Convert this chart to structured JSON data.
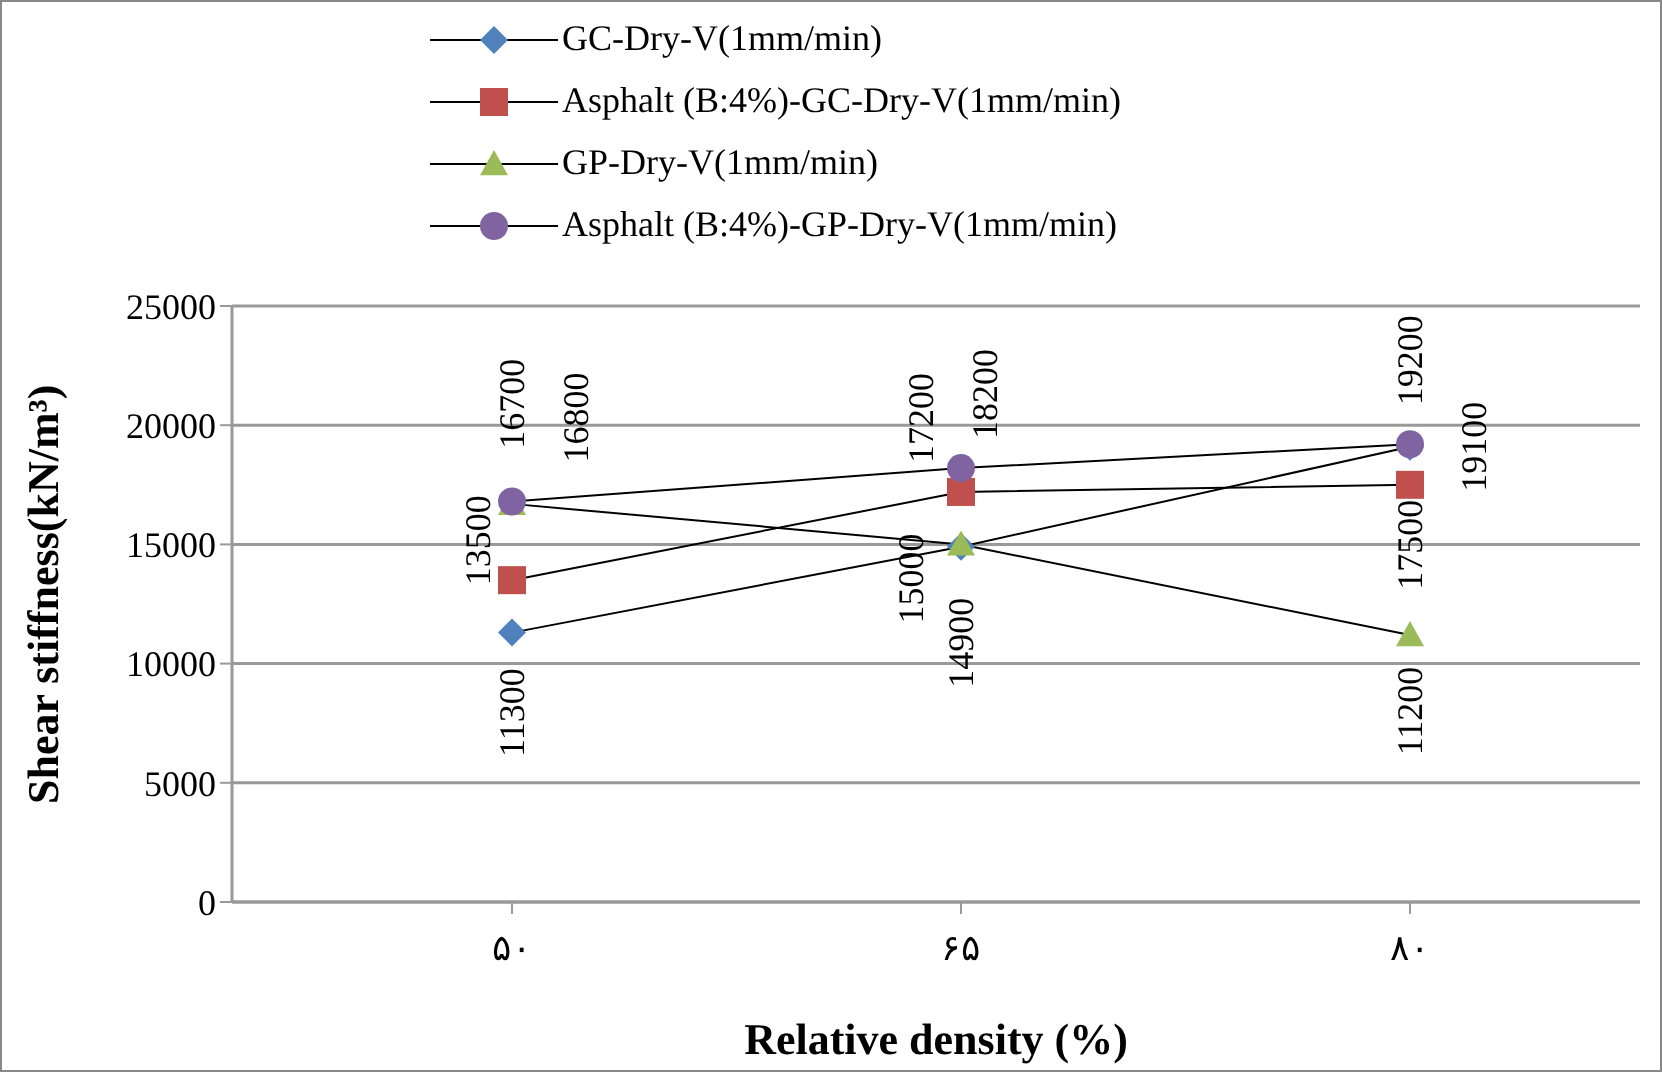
{
  "chart_data": {
    "type": "line",
    "xlabel": "Relative density (%)",
    "ylabel": "Shear stiffness(kN/m³)",
    "categories": [
      "۵۰",
      "۶۵",
      "۸۰"
    ],
    "series": [
      {
        "name": "GC-Dry-V(1mm/min)",
        "color": "#4f81bd",
        "marker": "diamond",
        "values": [
          11300,
          14900,
          19100
        ]
      },
      {
        "name": "Asphalt (B:4%)-GC-Dry-V(1mm/min)",
        "color": "#c0504d",
        "marker": "square",
        "values": [
          13500,
          17200,
          17500
        ]
      },
      {
        "name": "GP-Dry-V(1mm/min)",
        "color": "#9bbb59",
        "marker": "triangle",
        "values": [
          16700,
          15000,
          11200
        ]
      },
      {
        "name": "Asphalt (B:4%)-GP-Dry-V(1mm/min)",
        "color": "#8064a2",
        "marker": "circle",
        "values": [
          16800,
          18200,
          19200
        ]
      }
    ],
    "ylim": [
      0,
      25000
    ],
    "yticks": [
      0,
      5000,
      10000,
      15000,
      20000,
      25000
    ],
    "grid": "y",
    "legend": "top",
    "data_labels": true
  }
}
